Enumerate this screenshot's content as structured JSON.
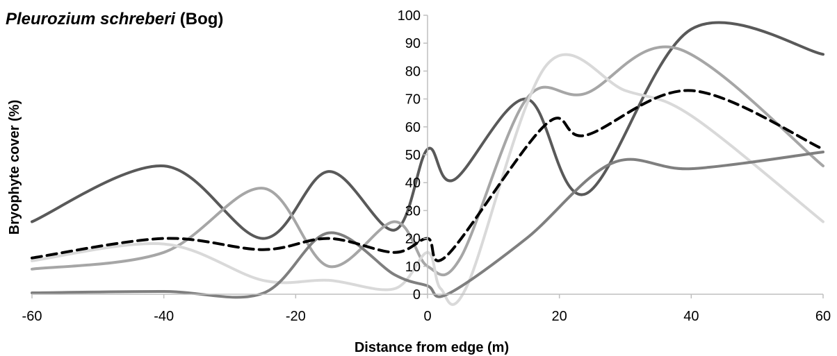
{
  "title": {
    "species": "Pleurozium schreberi",
    "habitat": "(Bog)"
  },
  "chart_data": {
    "type": "line",
    "xlabel": "Distance from edge (m)",
    "ylabel": "Bryophyte cover (%)",
    "xlim": [
      -60,
      60
    ],
    "ylim": [
      0,
      100
    ],
    "x_ticks": [
      -60,
      -40,
      -20,
      0,
      20,
      40,
      60
    ],
    "y_ticks": [
      0,
      10,
      20,
      30,
      40,
      50,
      60,
      70,
      80,
      90,
      100
    ],
    "grid": false,
    "legend": false,
    "series": [
      {
        "color": "#595959",
        "width": 4,
        "dash": "",
        "points": [
          [
            -60,
            26
          ],
          [
            -40,
            46
          ],
          [
            -25,
            20
          ],
          [
            -15,
            44
          ],
          [
            -5,
            23
          ],
          [
            0,
            52
          ],
          [
            4,
            41
          ],
          [
            15,
            70
          ],
          [
            24,
            36
          ],
          [
            40,
            95
          ],
          [
            60,
            86
          ]
        ]
      },
      {
        "color": "#a6a6a6",
        "width": 4,
        "dash": "",
        "points": [
          [
            -60,
            9
          ],
          [
            -40,
            15
          ],
          [
            -25,
            38
          ],
          [
            -15,
            10
          ],
          [
            -5,
            26
          ],
          [
            0,
            10
          ],
          [
            5,
            13
          ],
          [
            15,
            70
          ],
          [
            24,
            72
          ],
          [
            38,
            88
          ],
          [
            60,
            46
          ]
        ]
      },
      {
        "color": "#d9d9d9",
        "width": 4,
        "dash": "",
        "points": [
          [
            -60,
            12
          ],
          [
            -40,
            18
          ],
          [
            -25,
            5
          ],
          [
            -15,
            5
          ],
          [
            -5,
            2
          ],
          [
            0,
            15
          ],
          [
            2,
            2
          ],
          [
            6,
            3
          ],
          [
            18,
            82
          ],
          [
            30,
            73
          ],
          [
            40,
            64
          ],
          [
            60,
            26
          ]
        ]
      },
      {
        "color": "#7f7f7f",
        "width": 4,
        "dash": "",
        "points": [
          [
            -60,
            0.5
          ],
          [
            -40,
            1
          ],
          [
            -25,
            0.3
          ],
          [
            -15,
            22
          ],
          [
            -5,
            7
          ],
          [
            0,
            3
          ],
          [
            3,
            0
          ],
          [
            15,
            20
          ],
          [
            28,
            47
          ],
          [
            40,
            45
          ],
          [
            60,
            51
          ]
        ]
      },
      {
        "color": "#000000",
        "width": 4,
        "dash": "14,8",
        "points": [
          [
            -60,
            13
          ],
          [
            -40,
            20
          ],
          [
            -25,
            16
          ],
          [
            -15,
            20
          ],
          [
            -5,
            15
          ],
          [
            0,
            20
          ],
          [
            3,
            14
          ],
          [
            18,
            61
          ],
          [
            24,
            57
          ],
          [
            40,
            73
          ],
          [
            60,
            52
          ]
        ]
      }
    ]
  }
}
